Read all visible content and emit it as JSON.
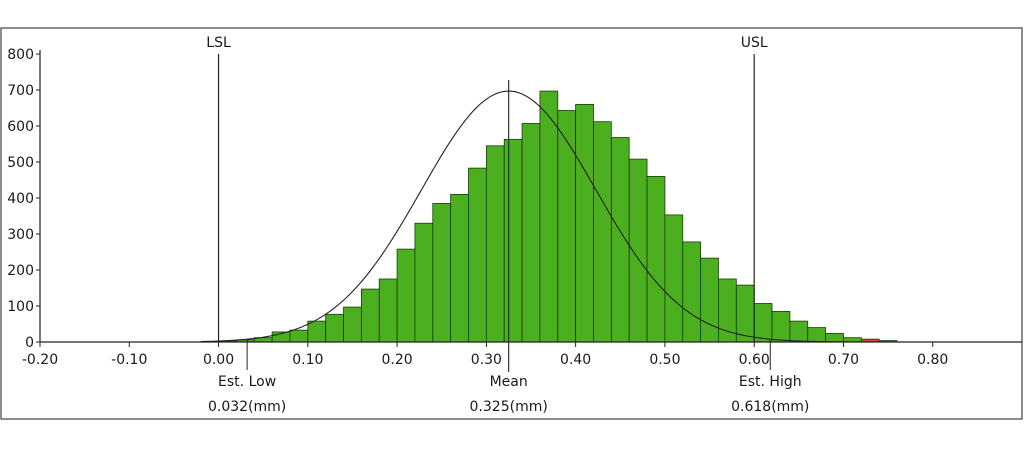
{
  "chart_data": {
    "type": "bar",
    "title": "",
    "xlabel": "",
    "ylabel": "",
    "xlim": [
      -0.2,
      0.9
    ],
    "ylim": [
      0,
      800
    ],
    "grid": false,
    "x_ticks": [
      -0.2,
      -0.1,
      0.0,
      0.1,
      0.2,
      0.3,
      0.4,
      0.5,
      0.6,
      0.7,
      0.8
    ],
    "x_tick_labels": [
      "-0.20",
      "-0.10",
      "0.00",
      "0.10",
      "0.20",
      "0.30",
      "0.40",
      "0.50",
      "0.60",
      "0.70",
      "0.80"
    ],
    "y_ticks": [
      0,
      100,
      200,
      300,
      400,
      500,
      600,
      700,
      800
    ],
    "y_tick_labels": [
      "0",
      "100",
      "200",
      "300",
      "400",
      "500",
      "600",
      "700",
      "800"
    ],
    "bin_width": 0.02,
    "bins": [
      {
        "start": -0.02,
        "count": 1,
        "color": "#4caf20"
      },
      {
        "start": 0.0,
        "count": 3,
        "color": "#4caf20"
      },
      {
        "start": 0.02,
        "count": 6,
        "color": "#4caf20"
      },
      {
        "start": 0.04,
        "count": 12,
        "color": "#4caf20"
      },
      {
        "start": 0.06,
        "count": 28,
        "color": "#4caf20"
      },
      {
        "start": 0.08,
        "count": 33,
        "color": "#4caf20"
      },
      {
        "start": 0.1,
        "count": 58,
        "color": "#4caf20"
      },
      {
        "start": 0.12,
        "count": 77,
        "color": "#4caf20"
      },
      {
        "start": 0.14,
        "count": 97,
        "color": "#4caf20"
      },
      {
        "start": 0.16,
        "count": 147,
        "color": "#4caf20"
      },
      {
        "start": 0.18,
        "count": 175,
        "color": "#4caf20"
      },
      {
        "start": 0.2,
        "count": 258,
        "color": "#4caf20"
      },
      {
        "start": 0.22,
        "count": 330,
        "color": "#4caf20"
      },
      {
        "start": 0.24,
        "count": 385,
        "color": "#4caf20"
      },
      {
        "start": 0.26,
        "count": 410,
        "color": "#4caf20"
      },
      {
        "start": 0.28,
        "count": 483,
        "color": "#4caf20"
      },
      {
        "start": 0.3,
        "count": 545,
        "color": "#4caf20"
      },
      {
        "start": 0.32,
        "count": 563,
        "color": "#4caf20"
      },
      {
        "start": 0.34,
        "count": 607,
        "color": "#4caf20"
      },
      {
        "start": 0.36,
        "count": 697,
        "color": "#4caf20"
      },
      {
        "start": 0.38,
        "count": 643,
        "color": "#4caf20"
      },
      {
        "start": 0.4,
        "count": 660,
        "color": "#4caf20"
      },
      {
        "start": 0.42,
        "count": 612,
        "color": "#4caf20"
      },
      {
        "start": 0.44,
        "count": 568,
        "color": "#4caf20"
      },
      {
        "start": 0.46,
        "count": 508,
        "color": "#4caf20"
      },
      {
        "start": 0.48,
        "count": 460,
        "color": "#4caf20"
      },
      {
        "start": 0.5,
        "count": 353,
        "color": "#4caf20"
      },
      {
        "start": 0.52,
        "count": 278,
        "color": "#4caf20"
      },
      {
        "start": 0.54,
        "count": 233,
        "color": "#4caf20"
      },
      {
        "start": 0.56,
        "count": 175,
        "color": "#4caf20"
      },
      {
        "start": 0.58,
        "count": 158,
        "color": "#4caf20"
      },
      {
        "start": 0.6,
        "count": 107,
        "color": "#4caf20"
      },
      {
        "start": 0.62,
        "count": 85,
        "color": "#4caf20"
      },
      {
        "start": 0.64,
        "count": 58,
        "color": "#4caf20"
      },
      {
        "start": 0.66,
        "count": 40,
        "color": "#4caf20"
      },
      {
        "start": 0.68,
        "count": 24,
        "color": "#4caf20"
      },
      {
        "start": 0.7,
        "count": 12,
        "color": "#4caf20"
      },
      {
        "start": 0.72,
        "count": 8,
        "color": "#e03c3c"
      },
      {
        "start": 0.74,
        "count": 4,
        "color": "#e03c3c"
      }
    ],
    "normal_curve": {
      "mean": 0.325,
      "peak": 697,
      "sigma": 0.0977,
      "color": "#222222"
    },
    "spec_limits": [
      {
        "name": "LSL",
        "x": 0.0
      },
      {
        "name": "USL",
        "x": 0.6
      }
    ],
    "stats": [
      {
        "label": "Est. Low",
        "value": "0.032(mm)",
        "x": 0.032
      },
      {
        "label": "Mean",
        "value": "0.325(mm)",
        "x": 0.325
      },
      {
        "label": "Est. High",
        "value": "0.618(mm)",
        "x": 0.618
      }
    ],
    "colors": {
      "bar": "#4caf20",
      "bar_out_of_spec": "#e03c3c",
      "bar_edge": "#1a3d0a",
      "axis": "#222222",
      "frame": "#444444"
    }
  }
}
